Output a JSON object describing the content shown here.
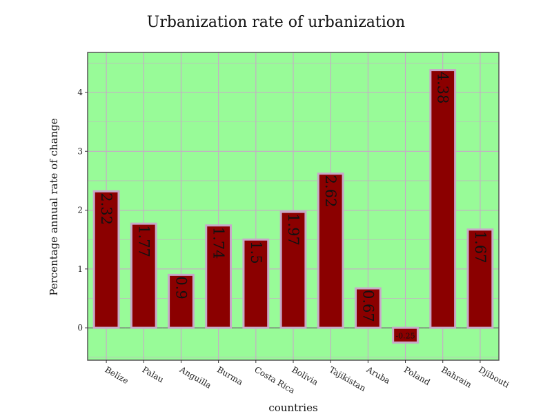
{
  "chart_data": {
    "type": "bar",
    "title": "Urbanization rate of urbanization",
    "xlabel": "countries",
    "ylabel": "Percentage annual rate of change",
    "categories": [
      "Belize",
      "Palau",
      "Anguilla",
      "Burma",
      "Costa Rica",
      "Bolivia",
      "Tajikistan",
      "Aruba",
      "Poland",
      "Bahrain",
      "Djibouti"
    ],
    "values": [
      2.32,
      1.77,
      0.9,
      1.74,
      1.5,
      1.97,
      2.62,
      0.67,
      -0.25,
      4.38,
      1.67
    ],
    "data_labels": [
      "2.32",
      "1.77",
      "0.9",
      "1.74",
      "1.5",
      "1.97",
      "2.62",
      "0.67",
      "-0.25",
      "4.38",
      "1.67"
    ],
    "ylim": [
      -0.55,
      4.68
    ],
    "yticks": [
      0,
      1,
      2,
      3,
      4
    ],
    "ytick_labels": [
      "0",
      "1",
      "2",
      "3",
      "4"
    ],
    "grid": true,
    "colors": {
      "panel_background": "#98fb98",
      "bar_fill": "#8b0000",
      "bar_outline": "#c8a8c8",
      "grid": "#c8a8c8",
      "panel_border": "#555555"
    }
  }
}
